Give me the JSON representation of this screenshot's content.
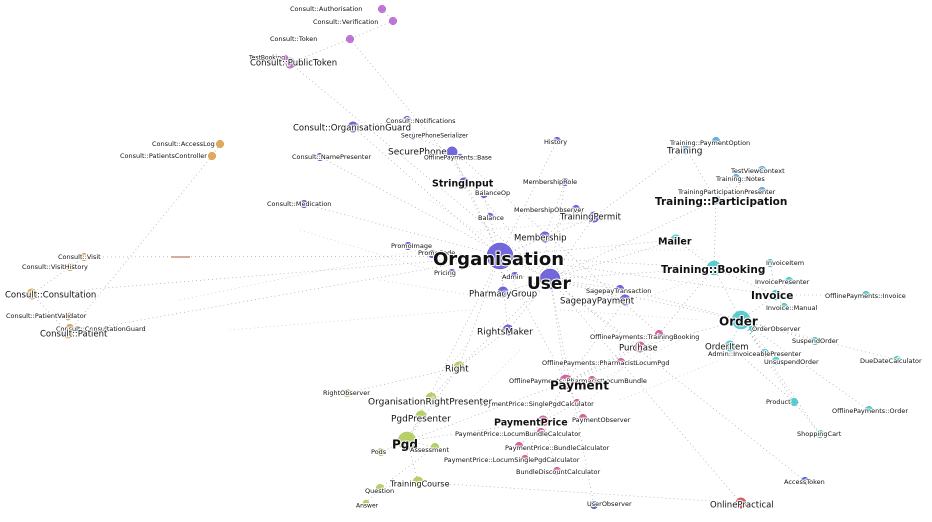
{
  "graph": {
    "palette": {
      "consult": "#b45fd0",
      "core": "#5a4fd6",
      "patient": "#d99a45",
      "training": "#4aa3df",
      "order": "#3cc4c8",
      "payment": "#cf4f8f",
      "pgd": "#a9c94c",
      "misc": "#4a55c8",
      "online": "#d1454a",
      "edge": "#9a9a9a"
    },
    "nodes": [
      {
        "id": "consult-authorisation",
        "label": "Consult::Authorisation",
        "group": "consult",
        "size": "s"
      },
      {
        "id": "consult-verification",
        "label": "Consult::Verification",
        "group": "consult",
        "size": "s"
      },
      {
        "id": "consult-token",
        "label": "Consult::Token",
        "group": "consult",
        "size": "s"
      },
      {
        "id": "testbooking",
        "label": "TestBooking",
        "group": "consult",
        "size": "xs"
      },
      {
        "id": "consult-publictoken",
        "label": "Consult::PublicToken",
        "group": "consult",
        "size": "m"
      },
      {
        "id": "consult-notifications",
        "label": "Consult::Notifications",
        "group": "core",
        "size": "s"
      },
      {
        "id": "consult-organisationguard",
        "label": "Consult::OrganisationGuard",
        "group": "core",
        "size": "m"
      },
      {
        "id": "securephoneserializer",
        "label": "SecurePhoneSerializer",
        "group": "core",
        "size": "xs"
      },
      {
        "id": "consult-accesslog",
        "label": "Consult::AccessLog",
        "group": "patient",
        "size": "s"
      },
      {
        "id": "consult-patientscontroller",
        "label": "Consult::PatientsController",
        "group": "patient",
        "size": "s"
      },
      {
        "id": "consult-namepresenter",
        "label": "Consult::NamePresenter",
        "group": "core",
        "size": "s"
      },
      {
        "id": "securephone",
        "label": "SecurePhone",
        "group": "core",
        "size": "m"
      },
      {
        "id": "offlinepayments-base",
        "label": "OfflinePayments::Base",
        "group": "core",
        "size": "xs"
      },
      {
        "id": "history",
        "label": "History",
        "group": "core",
        "size": "s"
      },
      {
        "id": "stringinput",
        "label": "StringInput",
        "group": "core",
        "size": "m"
      },
      {
        "id": "membershiprole",
        "label": "MembershipRole",
        "group": "core",
        "size": "s"
      },
      {
        "id": "balanceop",
        "label": "BalanceOp",
        "group": "core",
        "size": "s"
      },
      {
        "id": "consult-medication",
        "label": "Consult::Medication",
        "group": "core",
        "size": "s"
      },
      {
        "id": "membershipobserver",
        "label": "MembershipObserver",
        "group": "core",
        "size": "s"
      },
      {
        "id": "balance",
        "label": "Balance",
        "group": "core",
        "size": "s"
      },
      {
        "id": "trainingpermit",
        "label": "TrainingPermit",
        "group": "core",
        "size": "m"
      },
      {
        "id": "membership",
        "label": "Membership",
        "group": "core",
        "size": "m"
      },
      {
        "id": "promoimage",
        "label": "PromoImage",
        "group": "core",
        "size": "s"
      },
      {
        "id": "promocode",
        "label": "PromoCode",
        "group": "core",
        "size": "s"
      },
      {
        "id": "organisation",
        "label": "Organisation",
        "group": "core",
        "size": "xl"
      },
      {
        "id": "pricing",
        "label": "Pricing",
        "group": "core",
        "size": "s"
      },
      {
        "id": "admin",
        "label": "Admin",
        "group": "core",
        "size": "s"
      },
      {
        "id": "user",
        "label": "User",
        "group": "core",
        "size": "l"
      },
      {
        "id": "pharmacygroup",
        "label": "PharmacyGroup",
        "group": "core",
        "size": "m"
      },
      {
        "id": "sagepaytransaction",
        "label": "SagepayTransaction",
        "group": "core",
        "size": "s"
      },
      {
        "id": "sagepaypayment",
        "label": "SagepayPayment",
        "group": "core",
        "size": "m"
      },
      {
        "id": "rightsmaker",
        "label": "RightsMaker",
        "group": "core",
        "size": "m"
      },
      {
        "id": "consult-visit",
        "label": "Consult::Visit",
        "group": "patient",
        "size": "s"
      },
      {
        "id": "consult-visithistory",
        "label": "Consult::VisitHistory",
        "group": "patient",
        "size": "s"
      },
      {
        "id": "consult-consultation",
        "label": "Consult::Consultation",
        "group": "patient",
        "size": "m"
      },
      {
        "id": "consult-patientvalidator",
        "label": "Consult::PatientValidator",
        "group": "patient",
        "size": "s"
      },
      {
        "id": "consult-consultationguard",
        "label": "Consult::ConsultationGuard",
        "group": "patient",
        "size": "s"
      },
      {
        "id": "consult-patient",
        "label": "Consult::Patient",
        "group": "patient",
        "size": "m"
      },
      {
        "id": "training-paymentoption",
        "label": "Training::PaymentOption",
        "group": "training",
        "size": "s"
      },
      {
        "id": "training",
        "label": "Training",
        "group": "training",
        "size": "m"
      },
      {
        "id": "testviewcontext",
        "label": "TestViewContext",
        "group": "training",
        "size": "s"
      },
      {
        "id": "training-notes",
        "label": "Training::Notes",
        "group": "training",
        "size": "s"
      },
      {
        "id": "trainingparticipationpresenter",
        "label": "TrainingParticipationPresenter",
        "group": "training",
        "size": "s"
      },
      {
        "id": "trainingparticipation",
        "label": "Training::Participation",
        "group": "training",
        "size": "l"
      },
      {
        "id": "mailer",
        "label": "Mailer",
        "group": "order",
        "size": "m"
      },
      {
        "id": "training-booking",
        "label": "Training::Booking",
        "group": "order",
        "size": "l"
      },
      {
        "id": "invoiceitem",
        "label": "InvoiceItem",
        "group": "order",
        "size": "s"
      },
      {
        "id": "invoicepresenter",
        "label": "InvoicePresenter",
        "group": "order",
        "size": "s"
      },
      {
        "id": "invoice",
        "label": "Invoice",
        "group": "order",
        "size": "m"
      },
      {
        "id": "invoice-manual",
        "label": "Invoice::Manual",
        "group": "order",
        "size": "s"
      },
      {
        "id": "offlinepayments-invoice",
        "label": "OfflinePayments::Invoice",
        "group": "order",
        "size": "s"
      },
      {
        "id": "order",
        "label": "Order",
        "group": "order",
        "size": "l"
      },
      {
        "id": "orderobserver",
        "label": "OrderObserver",
        "group": "order",
        "size": "s"
      },
      {
        "id": "orderitem",
        "label": "OrderItem",
        "group": "order",
        "size": "m"
      },
      {
        "id": "admin-invoiceablepresenter",
        "label": "Admin::InvoiceablePresenter",
        "group": "order",
        "size": "s"
      },
      {
        "id": "suspendorder",
        "label": "SuspendOrder",
        "group": "order",
        "size": "s"
      },
      {
        "id": "unsuspendorder",
        "label": "UnsuspendOrder",
        "group": "order",
        "size": "s"
      },
      {
        "id": "duedatecalculator",
        "label": "DueDateCalculator",
        "group": "order",
        "size": "s"
      },
      {
        "id": "product",
        "label": "Product",
        "group": "order",
        "size": "s"
      },
      {
        "id": "offlinepayments-order",
        "label": "OfflinePayments::Order",
        "group": "order",
        "size": "s"
      },
      {
        "id": "shoppingcart",
        "label": "ShoppingCart",
        "group": "order",
        "size": "s"
      },
      {
        "id": "accesstoken",
        "label": "AccessToken",
        "group": "misc",
        "size": "s"
      },
      {
        "id": "onlinepractical",
        "label": "OnlinePractical",
        "group": "online",
        "size": "m"
      },
      {
        "id": "userobserver",
        "label": "UserObserver",
        "group": "misc",
        "size": "s"
      },
      {
        "id": "offlinepayments-trainingbooking",
        "label": "OfflinePayments::TrainingBooking",
        "group": "payment",
        "size": "s"
      },
      {
        "id": "purchase",
        "label": "Purchase",
        "group": "payment",
        "size": "m"
      },
      {
        "id": "offlinepayments-pharmacistlocumpgd",
        "label": "OfflinePayments::PharmacistLocumPgd",
        "group": "payment",
        "size": "s"
      },
      {
        "id": "offlinepayments-pharmacistlocumbundle",
        "label": "OfflinePayments::PharmacistLocumBundle",
        "group": "payment",
        "size": "s"
      },
      {
        "id": "payment",
        "label": "Payment",
        "group": "payment",
        "size": "l"
      },
      {
        "id": "paymentprice-singlepgdcalculator",
        "label": "PaymentPrice::SinglePgdCalculator",
        "group": "payment",
        "size": "s"
      },
      {
        "id": "paymentobserver",
        "label": "PaymentObserver",
        "group": "payment",
        "size": "s"
      },
      {
        "id": "paymentprice",
        "label": "PaymentPrice",
        "group": "payment",
        "size": "m"
      },
      {
        "id": "paymentprice-locumbundlecalculator",
        "label": "PaymentPrice::LocumBundleCalculator",
        "group": "payment",
        "size": "s"
      },
      {
        "id": "paymentprice-bundlecalculator",
        "label": "PaymentPrice::BundleCalculator",
        "group": "payment",
        "size": "s"
      },
      {
        "id": "paymentprice-locumsinglepgdcalculator",
        "label": "PaymentPrice::LocumSinglePgdCalculator",
        "group": "payment",
        "size": "s"
      },
      {
        "id": "bundlediscountcalculator",
        "label": "BundleDiscountCalculator",
        "group": "payment",
        "size": "s"
      },
      {
        "id": "right",
        "label": "Right",
        "group": "pgd",
        "size": "m"
      },
      {
        "id": "rightobserver",
        "label": "RightObserver",
        "group": "pgd",
        "size": "s"
      },
      {
        "id": "organisationrightpresenter",
        "label": "OrganisationRightPresenter",
        "group": "pgd",
        "size": "m"
      },
      {
        "id": "pgdpresenter",
        "label": "PgdPresenter",
        "group": "pgd",
        "size": "m"
      },
      {
        "id": "pgd",
        "label": "Pgd",
        "group": "pgd",
        "size": "l"
      },
      {
        "id": "assessment",
        "label": "Assessment",
        "group": "pgd",
        "size": "s"
      },
      {
        "id": "pods",
        "label": "Pods",
        "group": "pgd",
        "size": "s"
      },
      {
        "id": "trainingcourse",
        "label": "TrainingCourse",
        "group": "pgd",
        "size": "m"
      },
      {
        "id": "question",
        "label": "Question",
        "group": "pgd",
        "size": "s"
      },
      {
        "id": "answer",
        "label": "Answer",
        "group": "pgd",
        "size": "xs"
      }
    ],
    "edges": [
      [
        "organisation",
        "user"
      ],
      [
        "organisation",
        "membership"
      ],
      [
        "organisation",
        "stringinput"
      ],
      [
        "organisation",
        "balance"
      ],
      [
        "organisation",
        "promocode"
      ],
      [
        "organisation",
        "pricing"
      ],
      [
        "organisation",
        "admin"
      ],
      [
        "organisation",
        "pharmacygroup"
      ],
      [
        "organisation",
        "rightsmaker"
      ],
      [
        "organisation",
        "trainingpermit"
      ],
      [
        "organisation",
        "securephone"
      ],
      [
        "organisation",
        "consult-organisationguard"
      ],
      [
        "organisation",
        "consult-consultation"
      ],
      [
        "organisation",
        "consult-patient"
      ],
      [
        "organisation",
        "consult-visit"
      ],
      [
        "organisation",
        "training-booking"
      ],
      [
        "organisation",
        "order"
      ],
      [
        "organisation",
        "invoice"
      ],
      [
        "organisation",
        "mailer"
      ],
      [
        "organisation",
        "right"
      ],
      [
        "organisation",
        "payment"
      ],
      [
        "organisation",
        "pgd"
      ],
      [
        "organisation",
        "history"
      ],
      [
        "organisation",
        "consult-medication"
      ],
      [
        "user",
        "membership"
      ],
      [
        "user",
        "sagepaypayment"
      ],
      [
        "user",
        "sagepaytransaction"
      ],
      [
        "user",
        "payment"
      ],
      [
        "user",
        "purchase"
      ],
      [
        "user",
        "order"
      ],
      [
        "user",
        "trainingparticipation"
      ],
      [
        "user",
        "training-booking"
      ],
      [
        "user",
        "mailer"
      ],
      [
        "user",
        "rightsmaker"
      ],
      [
        "user",
        "userobserver"
      ],
      [
        "user",
        "accesstoken"
      ],
      [
        "user",
        "onlinepractical"
      ],
      [
        "user",
        "right"
      ],
      [
        "user",
        "trainingpermit"
      ],
      [
        "user",
        "membershiprole"
      ],
      [
        "user",
        "consult-namepresenter"
      ],
      [
        "user",
        "consult-publictoken"
      ],
      [
        "user",
        "consult-token"
      ],
      [
        "membership",
        "membershipobserver"
      ],
      [
        "membership",
        "membershiprole"
      ],
      [
        "stringinput",
        "balanceop"
      ],
      [
        "stringinput",
        "securephone"
      ],
      [
        "securephone",
        "securephoneserializer"
      ],
      [
        "consult-organisationguard",
        "consult-notifications"
      ],
      [
        "consult-publictoken",
        "consult-token"
      ],
      [
        "consult-authorisation",
        "consult-verification"
      ],
      [
        "consult-verification",
        "consult-token"
      ],
      [
        "testbooking",
        "consult-publictoken"
      ],
      [
        "consult-accesslog",
        "consult-patientscontroller"
      ],
      [
        "consult-visit",
        "consult-visithistory"
      ],
      [
        "consult-visit",
        "consult-consultation"
      ],
      [
        "consult-consultation",
        "consult-patient"
      ],
      [
        "consult-patient",
        "consult-patientvalidator"
      ],
      [
        "consult-consultationguard",
        "consult-patient"
      ],
      [
        "consult-patientscontroller",
        "consult-patient"
      ],
      [
        "training",
        "training-paymentoption"
      ],
      [
        "training",
        "trainingparticipation"
      ],
      [
        "trainingparticipation",
        "training-notes"
      ],
      [
        "trainingparticipation",
        "trainingparticipationpresenter"
      ],
      [
        "trainingparticipation",
        "testviewcontext"
      ],
      [
        "trainingparticipation",
        "training-booking"
      ],
      [
        "mailer",
        "training-booking"
      ],
      [
        "training-booking",
        "order"
      ],
      [
        "training-booking",
        "invoice"
      ],
      [
        "invoice",
        "invoiceitem"
      ],
      [
        "invoice",
        "invoicepresenter"
      ],
      [
        "invoice",
        "invoice-manual"
      ],
      [
        "invoice",
        "offlinepayments-invoice"
      ],
      [
        "invoice",
        "order"
      ],
      [
        "order",
        "orderobserver"
      ],
      [
        "order",
        "orderitem"
      ],
      [
        "order",
        "admin-invoiceablepresenter"
      ],
      [
        "order",
        "suspendorder"
      ],
      [
        "order",
        "unsuspendorder"
      ],
      [
        "order",
        "duedatecalculator"
      ],
      [
        "order",
        "product"
      ],
      [
        "order",
        "offlinepayments-order"
      ],
      [
        "order",
        "shoppingcart"
      ],
      [
        "orderitem",
        "product"
      ],
      [
        "product",
        "shoppingcart"
      ],
      [
        "payment",
        "purchase"
      ],
      [
        "payment",
        "offlinepayments-trainingbooking"
      ],
      [
        "payment",
        "offlinepayments-pharmacistlocumpgd"
      ],
      [
        "payment",
        "offlinepayments-pharmacistlocumbundle"
      ],
      [
        "payment",
        "paymentprice"
      ],
      [
        "payment",
        "paymentobserver"
      ],
      [
        "payment",
        "sagepaypayment"
      ],
      [
        "paymentprice",
        "paymentprice-singlepgdcalculator"
      ],
      [
        "paymentprice",
        "paymentprice-locumbundlecalculator"
      ],
      [
        "paymentprice",
        "paymentprice-bundlecalculator"
      ],
      [
        "paymentprice",
        "paymentprice-locumsinglepgdcalculator"
      ],
      [
        "paymentprice",
        "bundlediscountcalculator"
      ],
      [
        "purchase",
        "order"
      ],
      [
        "offlinepayments-trainingbooking",
        "training-booking"
      ],
      [
        "offlinepayments-base",
        "offlinepayments-trainingbooking"
      ],
      [
        "rightsmaker",
        "right"
      ],
      [
        "right",
        "rightobserver"
      ],
      [
        "right",
        "organisationrightpresenter"
      ],
      [
        "right",
        "pgd"
      ],
      [
        "pgd",
        "pgdpresenter"
      ],
      [
        "pgd",
        "assessment"
      ],
      [
        "pgd",
        "pods"
      ],
      [
        "pgd",
        "trainingcourse"
      ],
      [
        "pgd",
        "payment"
      ],
      [
        "pgd",
        "paymentprice"
      ],
      [
        "trainingcourse",
        "question"
      ],
      [
        "question",
        "answer"
      ],
      [
        "assessment",
        "question"
      ],
      [
        "trainingcourse",
        "onlinepractical"
      ],
      [
        "promocode",
        "promoimage"
      ],
      [
        "pharmacygroup",
        "user"
      ],
      [
        "admin",
        "user"
      ],
      [
        "balance",
        "balanceop"
      ],
      [
        "trainingpermit",
        "training"
      ]
    ]
  }
}
